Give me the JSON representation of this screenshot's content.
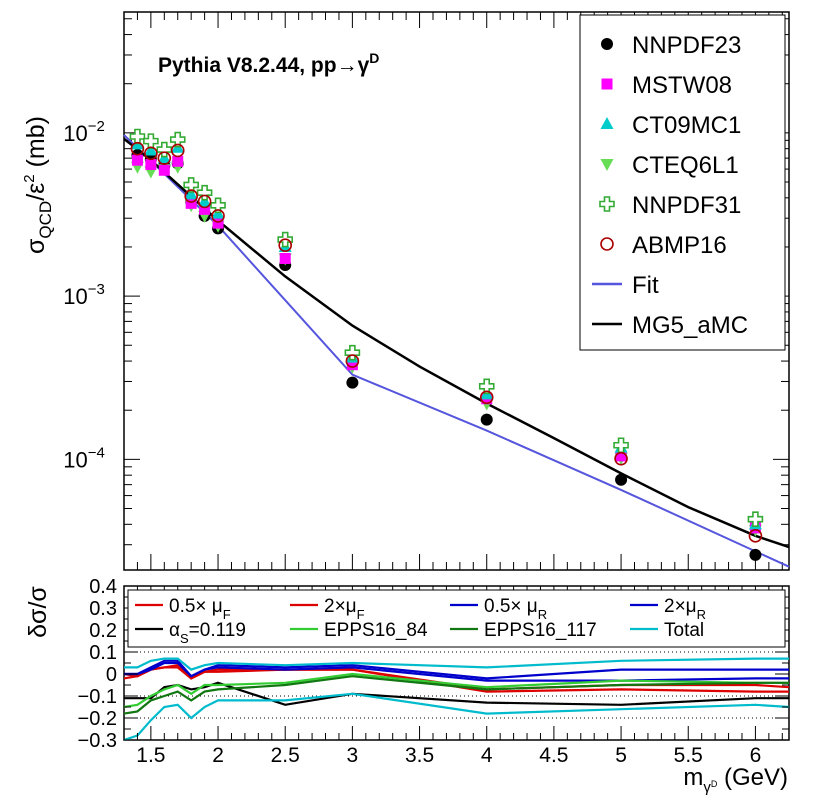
{
  "chart_data": [
    {
      "type": "scatter",
      "title": "Pythia V8.2.44, pp→γ",
      "title_sup": "D",
      "xlabel": "m",
      "xlabel_sub": "γ",
      "xlabel_subsup": "D",
      "xlabel_unit": "(GeV)",
      "ylabel": "σ",
      "ylabel_sub": "QCD",
      "ylabel_rest": "/ε",
      "ylabel_sup": "2",
      "ylabel_unit": "(mb)",
      "xlim": [
        1.3,
        6.25
      ],
      "ylim": [
        2.1e-05,
        0.055
      ],
      "yscale": "log",
      "ytick_labels": [
        {
          "value": 0.01,
          "base": "10",
          "exp": "−2"
        },
        {
          "value": 0.001,
          "base": "10",
          "exp": "−3"
        },
        {
          "value": 0.0001,
          "base": "10",
          "exp": "−4"
        }
      ],
      "legend_position": "top-right",
      "series": [
        {
          "name": "NNPDF23",
          "marker": "filled-circle",
          "color": "#000000",
          "x": [
            1.4,
            1.5,
            1.6,
            1.7,
            1.8,
            1.9,
            2.0,
            2.5,
            3.0,
            4.0,
            5.0,
            6.0
          ],
          "values": [
            0.0073,
            0.0069,
            0.0063,
            0.0065,
            0.0038,
            0.0031,
            0.0026,
            0.00155,
            0.000295,
            0.000175,
            7.5e-05,
            2.6e-05
          ]
        },
        {
          "name": "MSTW08",
          "marker": "filled-square",
          "color": "#ff00ff",
          "x": [
            1.4,
            1.5,
            1.6,
            1.7,
            1.8,
            1.9,
            2.0,
            2.5,
            3.0,
            4.0,
            5.0,
            6.0
          ],
          "values": [
            0.0068,
            0.0064,
            0.0059,
            0.0067,
            0.0037,
            0.0034,
            0.0028,
            0.0017,
            0.00038,
            0.000235,
            0.000105,
            3.8e-05
          ]
        },
        {
          "name": "CT09MC1",
          "marker": "up-triangle",
          "color": "#00cccc",
          "x": [
            1.4,
            1.5,
            1.6,
            1.7,
            1.8,
            1.9,
            2.0,
            2.5,
            3.0,
            4.0,
            5.0,
            6.0
          ],
          "values": [
            0.0085,
            0.0078,
            0.007,
            0.0081,
            0.0042,
            0.0038,
            0.0032,
            0.002,
            0.00042,
            0.00025,
            0.000118,
            4e-05
          ]
        },
        {
          "name": "CTEQ6L1",
          "marker": "down-triangle",
          "color": "#66dd55",
          "x": [
            1.4,
            1.5,
            1.6,
            1.7,
            1.8,
            1.9,
            2.0,
            2.5,
            3.0,
            4.0,
            5.0,
            6.0
          ],
          "values": [
            0.0062,
            0.0058,
            0.006,
            0.0062,
            0.0036,
            0.0031,
            0.0027,
            0.0017,
            0.00037,
            0.00022,
            0.000102,
            3.7e-05
          ]
        },
        {
          "name": "NNPDF31",
          "marker": "open-cross",
          "color": "#33aa33",
          "x": [
            1.4,
            1.5,
            1.6,
            1.7,
            1.8,
            1.9,
            2.0,
            2.5,
            3.0,
            4.0,
            5.0,
            6.0
          ],
          "values": [
            0.0095,
            0.0089,
            0.0079,
            0.0091,
            0.0048,
            0.0043,
            0.0036,
            0.00222,
            0.00045,
            0.00028,
            0.000122,
            4.3e-05
          ]
        },
        {
          "name": "ABMP16",
          "marker": "open-circle",
          "color": "#aa0000",
          "x": [
            1.4,
            1.5,
            1.6,
            1.7,
            1.8,
            1.9,
            2.0,
            2.5,
            3.0,
            4.0,
            5.0,
            6.0
          ],
          "values": [
            0.008,
            0.0075,
            0.007,
            0.0078,
            0.0041,
            0.0038,
            0.0031,
            0.00205,
            0.0004,
            0.00024,
            0.000101,
            3.4e-05
          ]
        },
        {
          "name": "Fit",
          "type": "line",
          "color": "#5555dd",
          "x": [
            1.3,
            2.0,
            3.0,
            4.0,
            5.0,
            6.25
          ],
          "values": [
            0.0097,
            0.0027,
            0.00033,
            0.00015,
            6.5e-05,
            2.2e-05
          ]
        },
        {
          "name": "MG5_aMC",
          "type": "line",
          "color": "#000000",
          "x": [
            1.3,
            1.5,
            2.0,
            2.5,
            3.0,
            3.5,
            4.0,
            4.5,
            5.0,
            5.5,
            6.0,
            6.25
          ],
          "values": [
            0.0092,
            0.0068,
            0.0029,
            0.00132,
            0.00066,
            0.00037,
            0.00022,
            0.000135,
            8.2e-05,
            5.1e-05,
            3.4e-05,
            2.9e-05
          ]
        }
      ]
    },
    {
      "type": "line",
      "ylabel": "δσ/σ",
      "xlim": [
        1.3,
        6.25
      ],
      "ylim": [
        -0.3,
        0.4
      ],
      "x_ticks": [
        1.5,
        2,
        2.5,
        3,
        3.5,
        4,
        4.5,
        5,
        5.5,
        6
      ],
      "x_tick_labels": [
        "1.5",
        "2",
        "2.5",
        "3",
        "3.5",
        "4",
        "4.5",
        "5",
        "5.5",
        "6"
      ],
      "y_ticks": [
        -0.3,
        -0.2,
        -0.1,
        0,
        0.1,
        0.2,
        0.3,
        0.4
      ],
      "y_tick_labels": [
        "−0.3",
        "−0.2",
        "−0.1",
        "0",
        "0.1",
        "0.2",
        "0.3",
        "0.4"
      ],
      "dotted_reference_lines": [
        -0.2,
        -0.1,
        0.1
      ],
      "legend_position": "top",
      "legend_entries": [
        {
          "label": "0.5× μ",
          "sub": "F",
          "color": "#dd0000"
        },
        {
          "label": "2×μ",
          "sub": "F",
          "color": "#dd0000"
        },
        {
          "label": "0.5× μ",
          "sub": "R",
          "color": "#0000cc"
        },
        {
          "label": "2×μ",
          "sub": "R",
          "color": "#0000cc"
        },
        {
          "label": "α",
          "sub": "S",
          "suffix": "=0.119",
          "color": "#000000"
        },
        {
          "label": "EPPS16_84",
          "sub": "",
          "color": "#33cc33"
        },
        {
          "label": "EPPS16_117",
          "sub": "",
          "color": "#117711"
        },
        {
          "label": "Total",
          "sub": "",
          "color": "#00bbcc"
        }
      ],
      "x": [
        1.3,
        1.4,
        1.5,
        1.6,
        1.7,
        1.8,
        1.9,
        2.0,
        2.5,
        3.0,
        4.0,
        5.0,
        6.0,
        6.25
      ],
      "series": [
        {
          "name": "0.5× μF",
          "color": "#dd0000",
          "values": [
            0.0,
            -0.01,
            0.02,
            0.03,
            0.03,
            -0.02,
            0.01,
            0.02,
            0.02,
            0.02,
            -0.07,
            -0.05,
            -0.05,
            -0.06
          ]
        },
        {
          "name": "2×μF",
          "color": "#dd0000",
          "values": [
            -0.02,
            -0.01,
            0.02,
            0.03,
            0.04,
            -0.02,
            0.01,
            0.01,
            0.02,
            0.02,
            -0.08,
            -0.07,
            -0.08,
            -0.08
          ]
        },
        {
          "name": "0.5× μR",
          "color": "#0000cc",
          "values": [
            0.0,
            0.0,
            0.03,
            0.06,
            0.06,
            -0.01,
            0.02,
            0.04,
            0.03,
            0.04,
            -0.02,
            0.02,
            0.02,
            0.02
          ]
        },
        {
          "name": "2×μR",
          "color": "#0000cc",
          "values": [
            0.0,
            0.0,
            0.02,
            0.05,
            0.05,
            -0.01,
            0.02,
            0.03,
            0.02,
            0.03,
            -0.03,
            -0.03,
            -0.02,
            -0.02
          ]
        },
        {
          "name": "αS=0.119",
          "color": "#000000",
          "values": [
            -0.11,
            -0.11,
            -0.11,
            -0.06,
            -0.05,
            -0.07,
            -0.06,
            -0.04,
            -0.14,
            -0.09,
            -0.13,
            -0.14,
            -0.11,
            -0.11
          ]
        },
        {
          "name": "EPPS16_84",
          "color": "#33cc33",
          "values": [
            -0.15,
            -0.14,
            -0.1,
            -0.07,
            -0.05,
            -0.09,
            -0.05,
            -0.05,
            -0.04,
            -0.0,
            -0.06,
            -0.03,
            -0.04,
            -0.04
          ]
        },
        {
          "name": "EPPS16_117",
          "color": "#117711",
          "values": [
            -0.18,
            -0.17,
            -0.12,
            -0.1,
            -0.08,
            -0.12,
            -0.08,
            -0.07,
            -0.05,
            -0.01,
            -0.07,
            -0.05,
            -0.04,
            -0.04
          ]
        },
        {
          "name": "Total (upper)",
          "color": "#00bbcc",
          "values": [
            0.03,
            0.03,
            0.06,
            0.07,
            0.07,
            0.02,
            0.04,
            0.05,
            0.04,
            0.05,
            0.03,
            0.06,
            0.07,
            0.07
          ]
        },
        {
          "name": "Total (lower)",
          "color": "#00bbcc",
          "values": [
            -0.3,
            -0.28,
            -0.21,
            -0.15,
            -0.14,
            -0.2,
            -0.15,
            -0.12,
            -0.12,
            -0.09,
            -0.18,
            -0.16,
            -0.14,
            -0.15
          ]
        }
      ]
    }
  ]
}
